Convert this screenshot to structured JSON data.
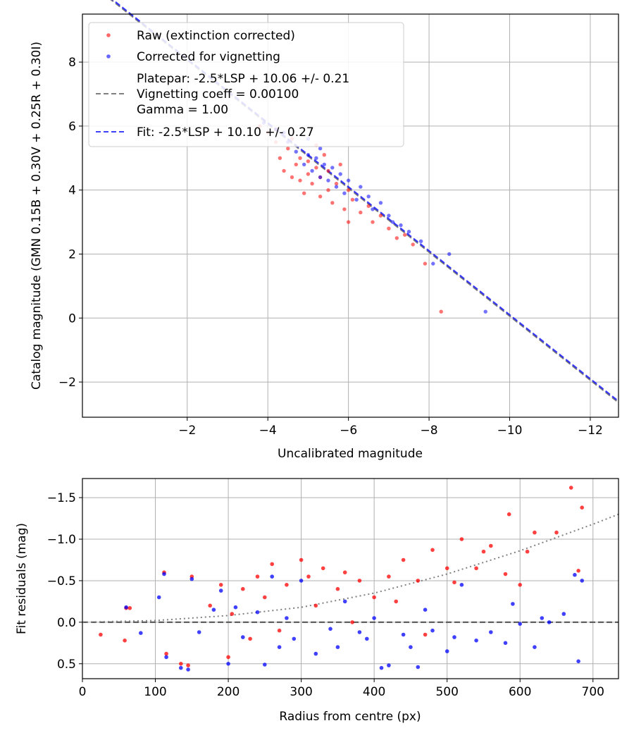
{
  "chart_data": [
    {
      "type": "scatter",
      "title": "",
      "xlabel": "Uncalibrated magnitude",
      "ylabel": "Catalog magnitude (GMN 0.15B + 0.30V + 0.25R + 0.30I)",
      "xlim": [
        0.6,
        -12.7
      ],
      "ylim": [
        9.5,
        -3.1
      ],
      "x_ticks": [
        -2,
        -4,
        -6,
        -8,
        -10,
        -12
      ],
      "x_tick_labels": [
        "−2",
        "−4",
        "−6",
        "−8",
        "−10",
        "−12"
      ],
      "y_ticks": [
        -2,
        0,
        2,
        4,
        6,
        8
      ],
      "y_tick_labels": [
        "−2",
        "0",
        "2",
        "4",
        "6",
        "8"
      ],
      "grid": true,
      "legend": {
        "position": "top-left",
        "entries": [
          {
            "label": "Raw (extinction corrected)",
            "kind": "marker",
            "color": "#ff0000"
          },
          {
            "label": "Corrected for vignetting",
            "kind": "marker",
            "color": "#0000ff"
          },
          {
            "label": "Platepar: -2.5*LSP + 10.06 +/- 0.21",
            "label2": "Vignetting coeff = 0.00100",
            "label3": "Gamma = 1.00",
            "kind": "line",
            "color": "#808080"
          },
          {
            "label": "Fit: -2.5*LSP + 10.10 +/- 0.27",
            "kind": "line",
            "color": "#0000ff"
          }
        ]
      },
      "lines": [
        {
          "name": "Platepar",
          "slope": 1,
          "intercept": 10.06,
          "color": "#808080",
          "dash": "dashed"
        },
        {
          "name": "Fit",
          "slope": 1,
          "intercept": 10.1,
          "color": "#0000ff",
          "dash": "dashed"
        }
      ],
      "series": [
        {
          "name": "Raw (extinction corrected)",
          "color": "#ff0000",
          "points": [
            [
              -3.8,
              6.0
            ],
            [
              -4.0,
              5.8
            ],
            [
              -4.2,
              5.5
            ],
            [
              -4.3,
              5.0
            ],
            [
              -4.4,
              4.6
            ],
            [
              -4.5,
              5.3
            ],
            [
              -4.6,
              4.4
            ],
            [
              -4.7,
              4.8
            ],
            [
              -4.8,
              4.3
            ],
            [
              -4.8,
              5.0
            ],
            [
              -4.9,
              3.9
            ],
            [
              -5.0,
              4.5
            ],
            [
              -5.0,
              4.9
            ],
            [
              -5.1,
              4.2
            ],
            [
              -5.2,
              4.7
            ],
            [
              -5.3,
              3.8
            ],
            [
              -5.3,
              4.4
            ],
            [
              -5.4,
              5.1
            ],
            [
              -5.5,
              4.0
            ],
            [
              -5.5,
              4.6
            ],
            [
              -5.6,
              3.6
            ],
            [
              -5.7,
              4.2
            ],
            [
              -5.8,
              4.8
            ],
            [
              -5.9,
              3.4
            ],
            [
              -6.0,
              4.0
            ],
            [
              -6.0,
              3.0
            ],
            [
              -6.1,
              3.7
            ],
            [
              -6.3,
              3.3
            ],
            [
              -6.5,
              3.5
            ],
            [
              -6.6,
              3.0
            ],
            [
              -6.8,
              3.2
            ],
            [
              -7.0,
              2.8
            ],
            [
              -7.2,
              2.5
            ],
            [
              -7.4,
              2.6
            ],
            [
              -7.6,
              2.3
            ],
            [
              -7.9,
              1.7
            ],
            [
              -8.3,
              0.2
            ],
            [
              -4.2,
              5.9
            ],
            [
              -4.6,
              5.6
            ],
            [
              -5.2,
              5.4
            ]
          ]
        },
        {
          "name": "Corrected for vignetting",
          "color": "#0000ff",
          "points": [
            [
              -3.9,
              6.1
            ],
            [
              -4.2,
              5.9
            ],
            [
              -4.5,
              5.5
            ],
            [
              -4.7,
              5.2
            ],
            [
              -4.9,
              4.8
            ],
            [
              -5.0,
              5.1
            ],
            [
              -5.1,
              4.6
            ],
            [
              -5.2,
              5.0
            ],
            [
              -5.3,
              4.4
            ],
            [
              -5.4,
              4.8
            ],
            [
              -5.5,
              4.3
            ],
            [
              -5.6,
              4.7
            ],
            [
              -5.7,
              4.1
            ],
            [
              -5.8,
              4.5
            ],
            [
              -5.9,
              3.9
            ],
            [
              -6.0,
              4.3
            ],
            [
              -6.2,
              3.7
            ],
            [
              -6.3,
              4.1
            ],
            [
              -6.5,
              3.8
            ],
            [
              -6.6,
              3.4
            ],
            [
              -6.8,
              3.6
            ],
            [
              -7.0,
              3.2
            ],
            [
              -7.1,
              3.0
            ],
            [
              -7.3,
              2.9
            ],
            [
              -7.5,
              2.7
            ],
            [
              -7.8,
              2.4
            ],
            [
              -8.1,
              1.7
            ],
            [
              -8.5,
              2.0
            ],
            [
              -9.4,
              0.2
            ],
            [
              -5.0,
              5.6
            ],
            [
              -5.3,
              5.3
            ],
            [
              -4.4,
              5.8
            ]
          ]
        }
      ]
    },
    {
      "type": "scatter",
      "title": "",
      "xlabel": "Radius from centre (px)",
      "ylabel": "Fit residuals (mag)",
      "xlim": [
        0,
        735
      ],
      "ylim": [
        -1.73,
        0.68
      ],
      "x_ticks": [
        0,
        100,
        200,
        300,
        400,
        500,
        600,
        700
      ],
      "x_tick_labels": [
        "0",
        "100",
        "200",
        "300",
        "400",
        "500",
        "600",
        "700"
      ],
      "y_ticks": [
        0.5,
        0.0,
        -0.5,
        -1.0,
        -1.5
      ],
      "y_tick_labels": [
        "0.5",
        "0.0",
        "−0.5",
        "−1.0",
        "−1.5"
      ],
      "grid": true,
      "lines": [
        {
          "name": "zero",
          "color": "#606060",
          "dash": "dashed",
          "points": [
            [
              0,
              0
            ],
            [
              735,
              0
            ]
          ]
        },
        {
          "name": "vignetting curve",
          "color": "#808080",
          "dash": "dotted",
          "points": [
            [
              0,
              0
            ],
            [
              100,
              -0.02
            ],
            [
              200,
              -0.08
            ],
            [
              300,
              -0.18
            ],
            [
              400,
              -0.35
            ],
            [
              500,
              -0.58
            ],
            [
              600,
              -0.86
            ],
            [
              700,
              -1.18
            ],
            [
              735,
              -1.3
            ]
          ]
        }
      ],
      "series": [
        {
          "name": "Raw (extinction corrected)",
          "color": "#ff0000",
          "points": [
            [
              25,
              0.15
            ],
            [
              58,
              0.22
            ],
            [
              60,
              -0.17
            ],
            [
              65,
              -0.17
            ],
            [
              112,
              -0.6
            ],
            [
              115,
              0.38
            ],
            [
              135,
              0.5
            ],
            [
              145,
              0.52
            ],
            [
              150,
              -0.55
            ],
            [
              175,
              -0.2
            ],
            [
              190,
              -0.45
            ],
            [
              200,
              0.42
            ],
            [
              205,
              -0.1
            ],
            [
              220,
              -0.4
            ],
            [
              240,
              -0.55
            ],
            [
              250,
              -0.3
            ],
            [
              260,
              -0.7
            ],
            [
              280,
              -0.45
            ],
            [
              300,
              -0.75
            ],
            [
              310,
              -0.55
            ],
            [
              330,
              -0.65
            ],
            [
              350,
              -0.4
            ],
            [
              360,
              -0.6
            ],
            [
              380,
              -0.5
            ],
            [
              400,
              -0.3
            ],
            [
              420,
              -0.55
            ],
            [
              440,
              -0.75
            ],
            [
              460,
              -0.5
            ],
            [
              480,
              -0.87
            ],
            [
              500,
              -0.65
            ],
            [
              520,
              -1.0
            ],
            [
              540,
              -0.65
            ],
            [
              560,
              -0.92
            ],
            [
              580,
              -0.58
            ],
            [
              585,
              -1.3
            ],
            [
              600,
              -0.45
            ],
            [
              610,
              -0.85
            ],
            [
              620,
              -1.08
            ],
            [
              650,
              -1.08
            ],
            [
              670,
              -1.62
            ],
            [
              680,
              -0.62
            ],
            [
              685,
              -1.38
            ],
            [
              230,
              0.2
            ],
            [
              270,
              0.1
            ],
            [
              320,
              -0.2
            ],
            [
              370,
              0.0
            ],
            [
              430,
              -0.25
            ],
            [
              470,
              0.15
            ],
            [
              510,
              -0.48
            ],
            [
              550,
              -0.85
            ]
          ]
        },
        {
          "name": "Corrected for vignetting",
          "color": "#0000ff",
          "points": [
            [
              60,
              -0.18
            ],
            [
              80,
              0.13
            ],
            [
              105,
              -0.3
            ],
            [
              112,
              -0.58
            ],
            [
              115,
              0.42
            ],
            [
              135,
              0.55
            ],
            [
              145,
              0.57
            ],
            [
              150,
              -0.52
            ],
            [
              160,
              0.12
            ],
            [
              180,
              -0.15
            ],
            [
              190,
              -0.38
            ],
            [
              200,
              0.5
            ],
            [
              210,
              -0.18
            ],
            [
              220,
              0.18
            ],
            [
              240,
              -0.12
            ],
            [
              250,
              0.51
            ],
            [
              260,
              -0.55
            ],
            [
              270,
              0.3
            ],
            [
              280,
              -0.05
            ],
            [
              290,
              0.2
            ],
            [
              300,
              -0.5
            ],
            [
              320,
              0.38
            ],
            [
              340,
              0.08
            ],
            [
              360,
              -0.25
            ],
            [
              380,
              0.12
            ],
            [
              400,
              -0.05
            ],
            [
              410,
              0.55
            ],
            [
              420,
              0.52
            ],
            [
              440,
              0.15
            ],
            [
              460,
              0.54
            ],
            [
              480,
              0.1
            ],
            [
              500,
              0.35
            ],
            [
              520,
              -0.45
            ],
            [
              540,
              0.22
            ],
            [
              560,
              0.12
            ],
            [
              580,
              0.25
            ],
            [
              600,
              0.02
            ],
            [
              620,
              0.3
            ],
            [
              640,
              0.0
            ],
            [
              660,
              -0.1
            ],
            [
              675,
              -0.57
            ],
            [
              680,
              0.47
            ],
            [
              685,
              -0.5
            ],
            [
              350,
              0.3
            ],
            [
              390,
              0.2
            ],
            [
              450,
              0.3
            ],
            [
              470,
              -0.15
            ],
            [
              510,
              0.18
            ],
            [
              590,
              -0.22
            ],
            [
              630,
              -0.05
            ]
          ]
        }
      ]
    }
  ]
}
